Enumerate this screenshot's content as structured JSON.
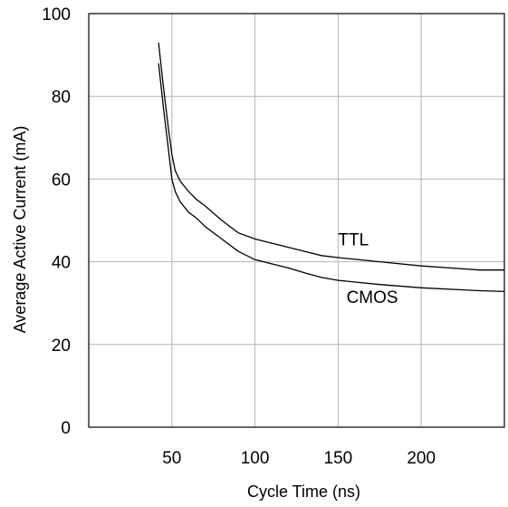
{
  "chart_data": {
    "type": "line",
    "title": "",
    "xlabel": "Cycle Time (ns)",
    "ylabel": "Average Active Current (mA)",
    "xlim": [
      0,
      250
    ],
    "ylim": [
      0,
      100
    ],
    "x_ticks": [
      50,
      100,
      150,
      200
    ],
    "y_ticks": [
      0,
      20,
      40,
      60,
      80,
      100
    ],
    "grid": true,
    "legend": "inline labels",
    "series": [
      {
        "name": "TTL",
        "label_at": [
          150,
          44
        ],
        "points": [
          [
            42,
            93
          ],
          [
            45,
            82
          ],
          [
            48,
            72
          ],
          [
            50,
            66
          ],
          [
            52,
            62
          ],
          [
            55,
            59.5
          ],
          [
            60,
            57
          ],
          [
            65,
            55
          ],
          [
            70,
            53.5
          ],
          [
            80,
            50
          ],
          [
            90,
            47
          ],
          [
            100,
            45.5
          ],
          [
            110,
            44.5
          ],
          [
            120,
            43.5
          ],
          [
            130,
            42.5
          ],
          [
            140,
            41.5
          ],
          [
            150,
            41
          ],
          [
            175,
            40
          ],
          [
            200,
            39
          ],
          [
            225,
            38.3
          ],
          [
            235,
            38
          ],
          [
            250,
            38
          ]
        ]
      },
      {
        "name": "CMOS",
        "label_at": [
          155,
          30
        ],
        "points": [
          [
            42,
            88
          ],
          [
            45,
            77
          ],
          [
            48,
            67
          ],
          [
            50,
            60
          ],
          [
            52,
            57
          ],
          [
            55,
            54.5
          ],
          [
            60,
            52
          ],
          [
            65,
            50.5
          ],
          [
            70,
            48.5
          ],
          [
            80,
            45.5
          ],
          [
            90,
            42.5
          ],
          [
            100,
            40.5
          ],
          [
            110,
            39.5
          ],
          [
            120,
            38.5
          ],
          [
            130,
            37.3
          ],
          [
            140,
            36.2
          ],
          [
            150,
            35.5
          ],
          [
            175,
            34.5
          ],
          [
            200,
            33.7
          ],
          [
            225,
            33.2
          ],
          [
            235,
            33
          ],
          [
            250,
            32.8
          ]
        ]
      }
    ]
  }
}
